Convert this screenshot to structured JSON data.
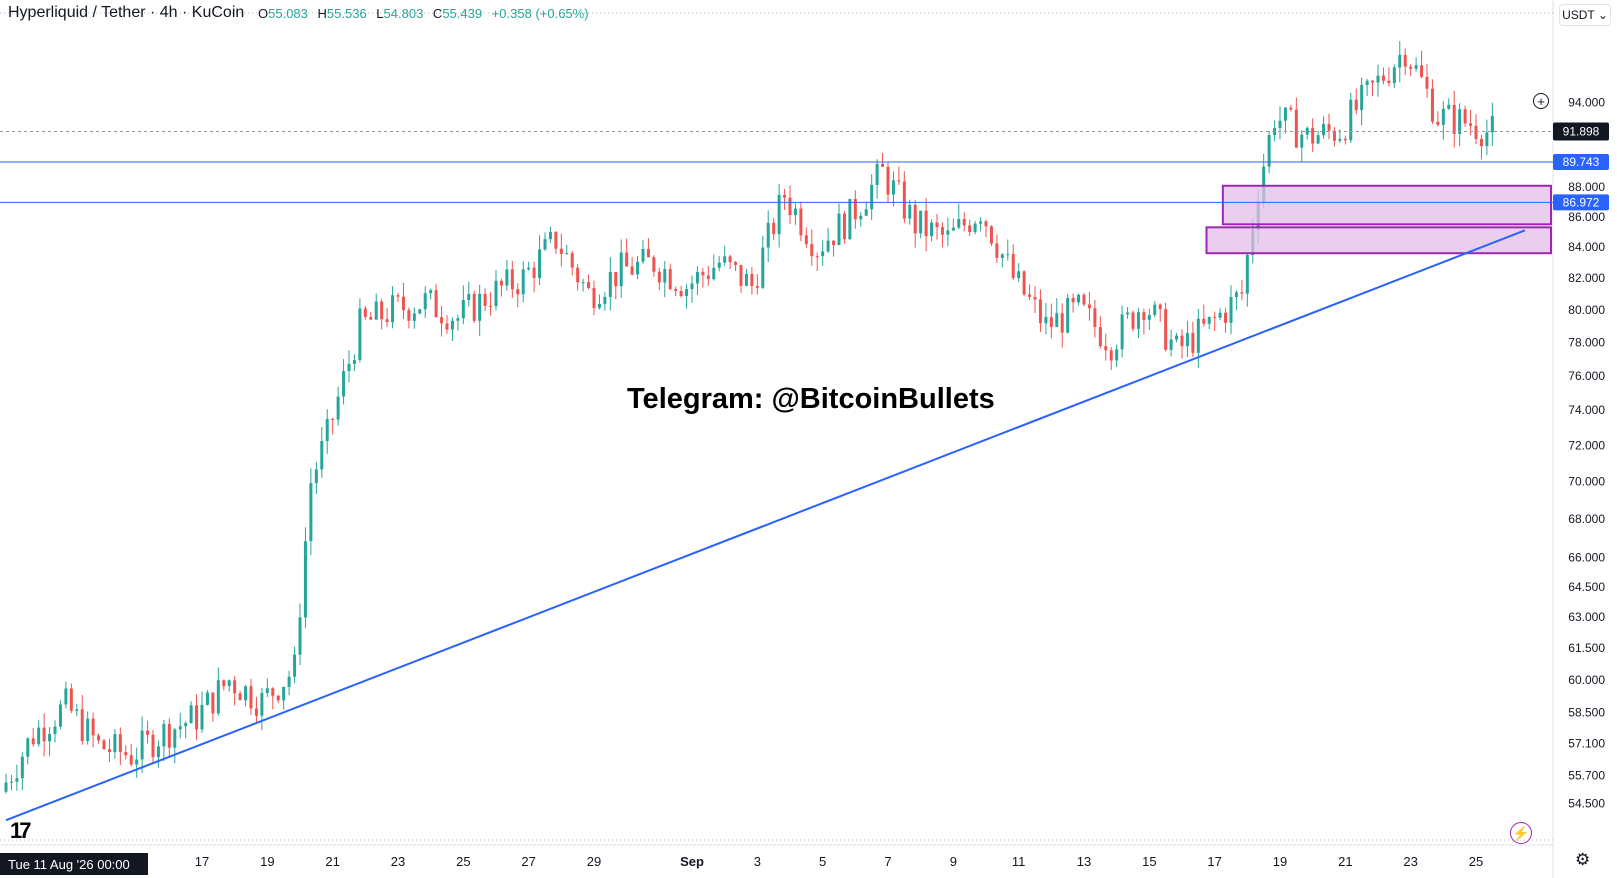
{
  "header": {
    "symbol": "Hyperliquid / Tether · 4h · KuCoin",
    "open_label": "O",
    "open": "55.083",
    "high_label": "H",
    "high": "55.536",
    "low_label": "L",
    "low": "54.803",
    "close_label": "C",
    "close": "55.439",
    "change": "+0.358 (+0.65%)"
  },
  "currency_button": "USDT ⌄",
  "watermark": "Telegram: @BitcoinBullets",
  "cursor_date": "Tue 11 Aug '26   00:00",
  "tv_logo": "17",
  "icons": {
    "plus": "plus-circle-icon",
    "bolt": "lightning-icon",
    "gear": "settings-icon"
  },
  "colors": {
    "up": "#26a69a",
    "down": "#ef5350",
    "line": "#2962ff",
    "zone": "#9c27b0",
    "zone_fill": "#e1bee7"
  },
  "chart_data": {
    "type": "candlestick",
    "scale": "log",
    "ylim": [
      53.6,
      101.0
    ],
    "y_ticks": [
      54.5,
      55.7,
      57.1,
      58.5,
      60.0,
      61.5,
      63.0,
      64.5,
      66.0,
      68.0,
      70.0,
      72.0,
      74.0,
      76.0,
      78.0,
      80.0,
      82.0,
      84.0,
      86.0,
      88.0,
      94.0
    ],
    "y_tick_labels": [
      "54.500",
      "55.700",
      "57.100",
      "58.500",
      "60.000",
      "61.500",
      "63.000",
      "64.500",
      "66.000",
      "68.000",
      "70.000",
      "72.000",
      "74.000",
      "76.000",
      "78.000",
      "80.000",
      "82.000",
      "84.000",
      "86.000",
      "88.000",
      "94.000"
    ],
    "x_ticks": [
      {
        "date": "2026-08-17",
        "label": "17"
      },
      {
        "date": "2026-08-19",
        "label": "19"
      },
      {
        "date": "2026-08-21",
        "label": "21"
      },
      {
        "date": "2026-08-23",
        "label": "23"
      },
      {
        "date": "2026-08-25",
        "label": "25"
      },
      {
        "date": "2026-08-27",
        "label": "27"
      },
      {
        "date": "2026-08-29",
        "label": "29"
      },
      {
        "date": "2026-09-01",
        "label": "Sep",
        "bold": true
      },
      {
        "date": "2026-09-03",
        "label": "3"
      },
      {
        "date": "2026-09-05",
        "label": "5"
      },
      {
        "date": "2026-09-07",
        "label": "7"
      },
      {
        "date": "2026-09-09",
        "label": "9"
      },
      {
        "date": "2026-09-11",
        "label": "11"
      },
      {
        "date": "2026-09-13",
        "label": "13"
      },
      {
        "date": "2026-09-15",
        "label": "15"
      },
      {
        "date": "2026-09-17",
        "label": "17"
      },
      {
        "date": "2026-09-19",
        "label": "19"
      },
      {
        "date": "2026-09-21",
        "label": "21"
      },
      {
        "date": "2026-09-23",
        "label": "23"
      },
      {
        "date": "2026-09-25",
        "label": "25"
      }
    ],
    "price_path": [
      [
        "2026-08-11",
        55.0
      ],
      [
        "2026-08-12",
        57.5
      ],
      [
        "2026-08-13",
        58.8
      ],
      [
        "2026-08-14",
        57.0
      ],
      [
        "2026-08-15",
        56.6
      ],
      [
        "2026-08-16",
        57.6
      ],
      [
        "2026-08-17",
        58.3
      ],
      [
        "2026-08-18",
        60.0
      ],
      [
        "2026-08-19",
        59.0
      ],
      [
        "2026-08-20",
        60.5
      ],
      [
        "2026-08-20T12:00",
        70.0
      ],
      [
        "2026-08-21",
        72.5
      ],
      [
        "2026-08-22",
        79.0
      ],
      [
        "2026-08-23",
        80.0
      ],
      [
        "2026-08-24",
        80.5
      ],
      [
        "2026-08-25",
        79.5
      ],
      [
        "2026-08-26",
        81.0
      ],
      [
        "2026-08-27",
        82.0
      ],
      [
        "2026-08-28",
        84.5
      ],
      [
        "2026-08-29",
        81.0
      ],
      [
        "2026-08-30",
        82.5
      ],
      [
        "2026-08-31",
        83.0
      ],
      [
        "2026-09-01",
        81.5
      ],
      [
        "2026-09-02",
        83.0
      ],
      [
        "2026-09-03",
        81.5
      ],
      [
        "2026-09-04",
        87.5
      ],
      [
        "2026-09-05",
        84.0
      ],
      [
        "2026-09-06",
        86.0
      ],
      [
        "2026-09-07",
        89.0
      ],
      [
        "2026-09-08",
        85.5
      ],
      [
        "2026-09-09",
        84.5
      ],
      [
        "2026-09-10",
        86.5
      ],
      [
        "2026-09-11",
        82.0
      ],
      [
        "2026-09-12",
        79.0
      ],
      [
        "2026-09-13",
        80.0
      ],
      [
        "2026-09-14",
        78.0
      ],
      [
        "2026-09-15",
        80.5
      ],
      [
        "2026-09-16",
        77.5
      ],
      [
        "2026-09-17",
        79.0
      ],
      [
        "2026-09-18",
        81.0
      ],
      [
        "2026-09-18T12:00",
        88.0
      ],
      [
        "2026-09-19",
        93.0
      ],
      [
        "2026-09-20",
        91.5
      ],
      [
        "2026-09-21",
        92.0
      ],
      [
        "2026-09-22",
        95.0
      ],
      [
        "2026-09-23",
        98.0
      ],
      [
        "2026-09-24",
        93.0
      ],
      [
        "2026-09-25",
        92.5
      ],
      [
        "2026-09-25T12:00",
        91.9
      ]
    ],
    "horizontal_lines": [
      {
        "price": 89.743,
        "label": "89.743"
      },
      {
        "price": 86.972,
        "label": "86.972"
      }
    ],
    "current_price": {
      "price": 91.898,
      "label": "91.898"
    },
    "zones": [
      {
        "from": "2026-09-17T06:00",
        "price_low": 85.5,
        "price_high": 88.1
      },
      {
        "from": "2026-09-16T18:00",
        "price_low": 83.6,
        "price_high": 85.3
      }
    ],
    "trendline": [
      [
        "2026-08-11",
        53.8
      ],
      [
        "2026-09-26T12:00",
        85.1
      ]
    ],
    "x_start": "2026-08-11",
    "x_end": "2026-09-26T12:00"
  }
}
